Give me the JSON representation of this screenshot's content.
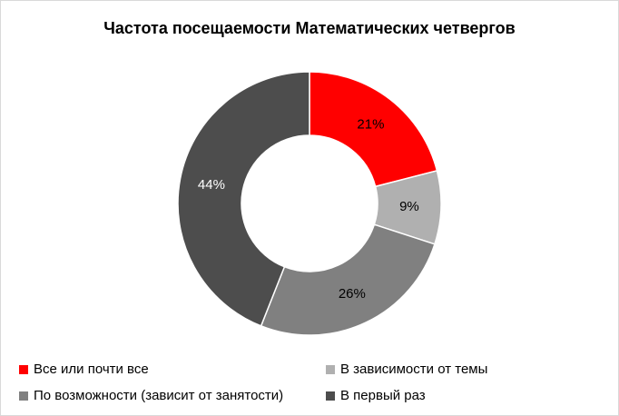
{
  "chart_data": {
    "type": "pie",
    "subtype": "donut",
    "title": "Частота посещаемости Математических четвергов",
    "categories": [
      "Все или почти все",
      "В зависимости от темы",
      "По возможности (зависит от занятости)",
      "В первый раз"
    ],
    "values": [
      21,
      9,
      26,
      44
    ],
    "value_labels": [
      "21%",
      "9%",
      "26%",
      "44%"
    ],
    "colors": [
      "#ff0000",
      "#b0b0b0",
      "#808080",
      "#4d4d4d"
    ],
    "label_colors": [
      "#000000",
      "#000000",
      "#000000",
      "#ffffff"
    ],
    "legend_position": "bottom"
  }
}
